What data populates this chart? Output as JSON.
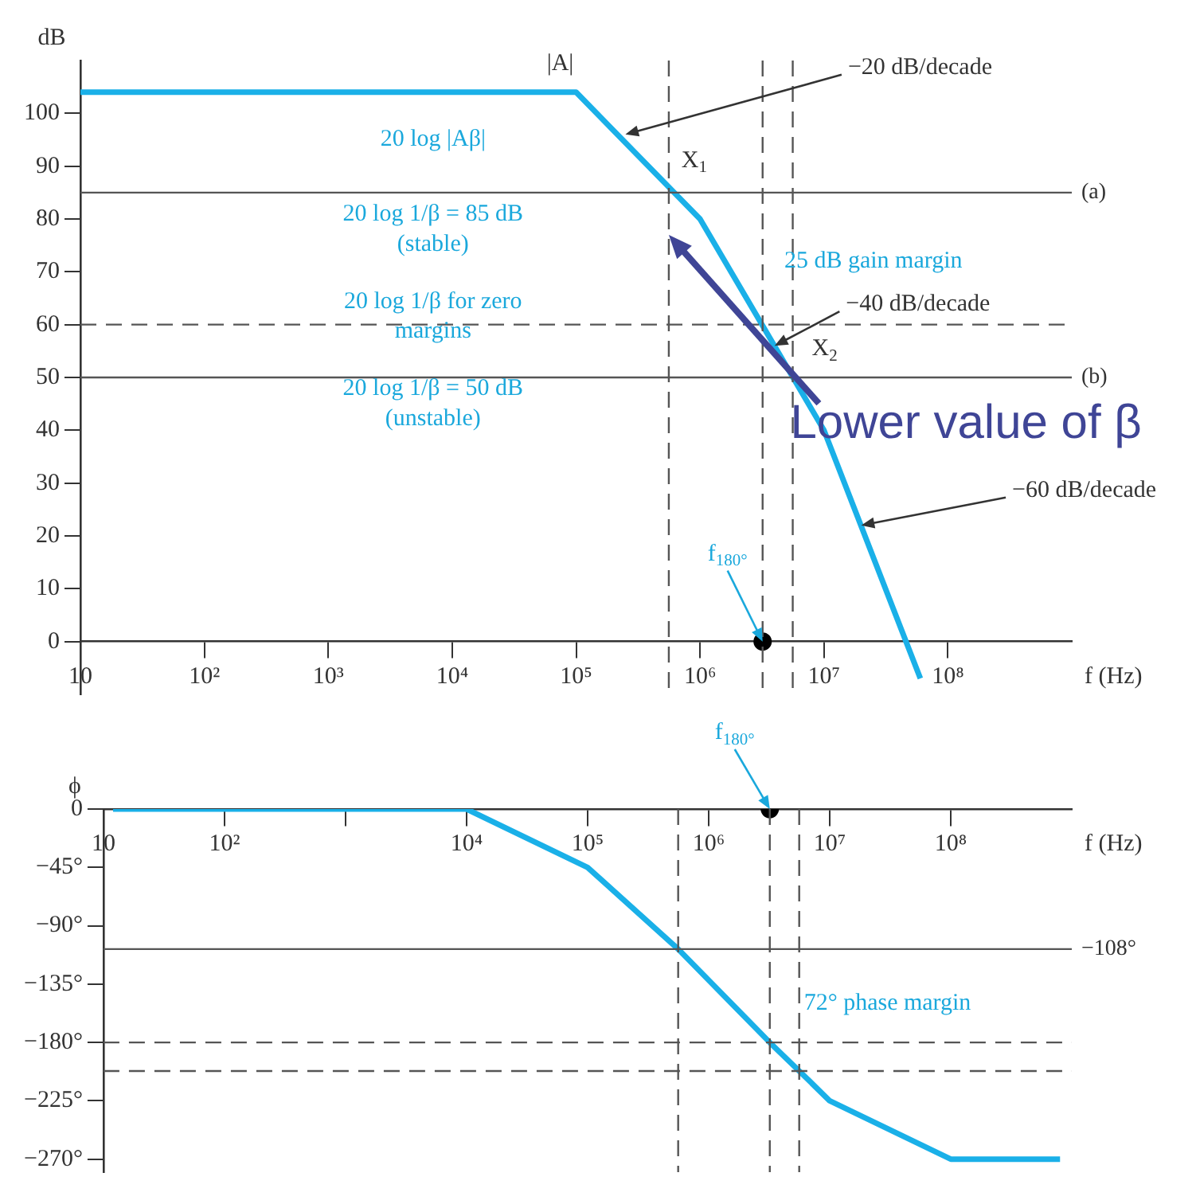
{
  "chart_data": [
    {
      "type": "line",
      "xlabel": "f (Hz)",
      "ylabel": "dB",
      "log": "x",
      "grid": false,
      "legend": false,
      "xlim": [
        10,
        1000000000
      ],
      "xticks": [
        {
          "value": 10,
          "label": "10"
        },
        {
          "value": 100,
          "label": "10²"
        },
        {
          "value": 1000,
          "label": "10³"
        },
        {
          "value": 10000,
          "label": "10⁴"
        },
        {
          "value": 100000,
          "label": "10⁵"
        },
        {
          "value": 1000000,
          "label": "10⁶"
        },
        {
          "value": 10000000,
          "label": "10⁷"
        },
        {
          "value": 100000000,
          "label": "10⁸"
        }
      ],
      "ylim": [
        -10,
        110
      ],
      "yticks": [
        0,
        10,
        20,
        30,
        40,
        50,
        60,
        70,
        80,
        90,
        100
      ],
      "series": [
        {
          "type": "line",
          "marker": "none",
          "color": "#1ab0e8",
          "x": [
            10,
            100000,
            1000000,
            10000000,
            60000000
          ],
          "values": [
            104,
            104,
            80,
            40,
            -7
          ]
        },
        {
          "type": "scatter",
          "marker": "circle",
          "color": "#000000",
          "x": [
            3200000
          ],
          "values": [
            0
          ]
        }
      ],
      "ref_lines": [
        {
          "axis": "y",
          "value": 85,
          "label": "(a)",
          "color": "#555555",
          "line_style": "solid"
        },
        {
          "axis": "y",
          "value": 50,
          "label": "(b)",
          "color": "#555555",
          "line_style": "solid"
        },
        {
          "axis": "y",
          "value": 60,
          "color": "#555555",
          "line_style": "dashed"
        },
        {
          "axis": "x",
          "value": 560000,
          "color": "#555555",
          "line_style": "dashed"
        },
        {
          "axis": "x",
          "value": 3200000,
          "color": "#555555",
          "line_style": "dashed"
        },
        {
          "axis": "x",
          "value": 5600000,
          "color": "#555555",
          "line_style": "dashed"
        }
      ],
      "annotations": [
        {
          "text": "|A|",
          "x": 100000,
          "y": 104
        },
        {
          "text": "−20 dB/decade",
          "x": 250000,
          "y": 96
        },
        {
          "text": "X$_{1}$",
          "x": 560000,
          "y": 85
        },
        "20 log |Aβ|",
        "20 log 1/β = 85 dB (stable)",
        "25 dB gain margin",
        "20 log 1/β for zero margins",
        {
          "text": "−40 dB/decade",
          "x": 4000000,
          "y": 56
        },
        {
          "text": "X$_{2}$",
          "x": 5600000,
          "y": 50
        },
        "20 log 1/β = 50 dB (unstable)",
        "Lower value of β",
        {
          "text": "−60 dB/decade",
          "x": 20000000,
          "y": 22
        },
        {
          "text": "f$_{180°}$",
          "x": 3200000,
          "y": 0
        }
      ]
    },
    {
      "type": "line",
      "xlabel": "f (Hz)",
      "ylabel": "ϕ",
      "log": "x",
      "grid": false,
      "legend": false,
      "xlim": [
        10,
        1000000000
      ],
      "xticks": [
        {
          "value": 10,
          "label": "10"
        },
        {
          "value": 100,
          "label": "10²"
        },
        {
          "value": 1000,
          "label": null
        },
        {
          "value": 10000,
          "label": "10⁴"
        },
        {
          "value": 100000,
          "label": "10⁵"
        },
        {
          "value": 1000000,
          "label": "10⁶"
        },
        {
          "value": 10000000,
          "label": "10⁷"
        },
        {
          "value": 100000000,
          "label": "10⁸"
        }
      ],
      "ylim": [
        -280,
        0
      ],
      "yticks": [
        0,
        {
          "value": -45,
          "label": "−45°"
        },
        {
          "value": -90,
          "label": "−90°"
        },
        {
          "value": -135,
          "label": "−135°"
        },
        {
          "value": -180,
          "label": "−180°"
        },
        {
          "value": -225,
          "label": "−225°"
        },
        {
          "value": -270,
          "label": "−270°"
        }
      ],
      "series": [
        {
          "type": "line",
          "marker": "none",
          "color": "#1ab0e8",
          "x": [
            12,
            10000,
            100000,
            560000,
            3200000,
            5600000,
            10000000,
            100000000,
            800000000
          ],
          "values": [
            0,
            0,
            -45,
            -108,
            -180,
            -202,
            -225,
            -270,
            -270
          ]
        },
        {
          "type": "scatter",
          "marker": "circle",
          "color": "#000000",
          "x": [
            3200000
          ],
          "values": [
            0
          ]
        }
      ],
      "ref_lines": [
        {
          "axis": "y",
          "value": -108,
          "label": "−108°",
          "color": "#555555",
          "line_style": "solid"
        },
        {
          "axis": "y",
          "value": -180,
          "color": "#555555",
          "line_style": "dashed"
        },
        {
          "axis": "y",
          "value": -202,
          "color": "#555555",
          "line_style": "dashed"
        },
        {
          "axis": "x",
          "value": 560000,
          "color": "#555555",
          "line_style": "dashed"
        },
        {
          "axis": "x",
          "value": 3200000,
          "color": "#555555",
          "line_style": "dashed"
        },
        {
          "axis": "x",
          "value": 5600000,
          "color": "#555555",
          "line_style": "dashed"
        }
      ],
      "annotations": [
        "72° phase margin",
        {
          "text": "f$_{180°}$",
          "x": 3200000,
          "y": 0
        }
      ]
    }
  ]
}
